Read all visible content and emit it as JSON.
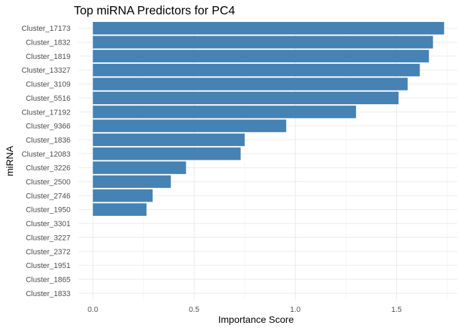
{
  "chart_data": {
    "type": "bar",
    "orientation": "horizontal",
    "title": "Top miRNA Predictors for PC4",
    "xlabel": "Importance Score",
    "ylabel": "miRNA",
    "xlim": [
      -0.07,
      1.8
    ],
    "x_ticks": [
      0.0,
      0.5,
      1.0,
      1.5
    ],
    "x_tick_labels": [
      "0.0",
      "0.5",
      "1.0",
      "1.5"
    ],
    "grid": true,
    "bar_color": "#4682B4",
    "categories": [
      "Cluster_17173",
      "Cluster_1832",
      "Cluster_1819",
      "Cluster_13327",
      "Cluster_3109",
      "Cluster_5516",
      "Cluster_17192",
      "Cluster_9366",
      "Cluster_1836",
      "Cluster_12083",
      "Cluster_3226",
      "Cluster_2500",
      "Cluster_2746",
      "Cluster_1950",
      "Cluster_3301",
      "Cluster_3227",
      "Cluster_2372",
      "Cluster_1951",
      "Cluster_1865",
      "Cluster_1833"
    ],
    "values": [
      1.735,
      1.68,
      1.66,
      1.615,
      1.555,
      1.51,
      1.3,
      0.955,
      0.75,
      0.73,
      0.46,
      0.385,
      0.295,
      0.265,
      0,
      0,
      0,
      0,
      0,
      0
    ]
  }
}
